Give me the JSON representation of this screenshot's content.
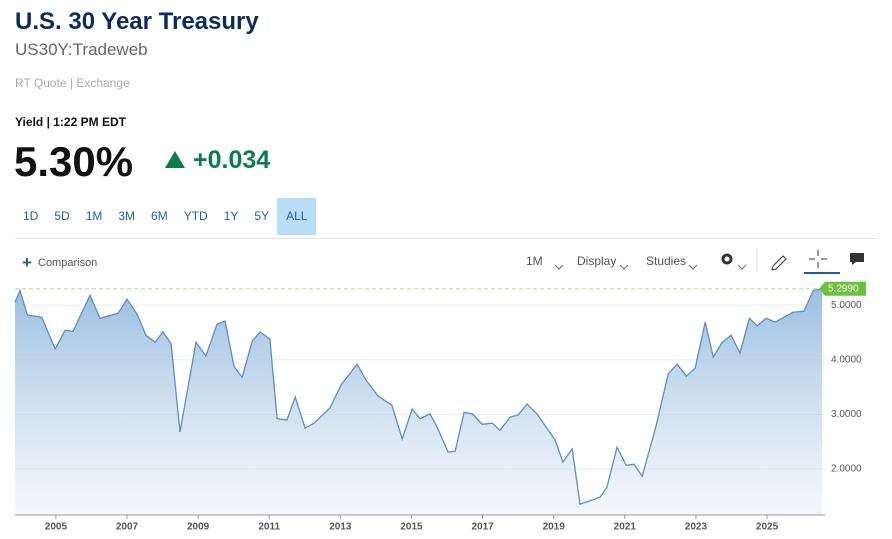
{
  "header": {
    "title": "U.S. 30 Year Treasury",
    "symbol": "US30Y:Tradeweb",
    "quote_type": "RT Quote | Exchange"
  },
  "quote": {
    "label": "Yield | 1:22 PM EDT",
    "price": "5.30%",
    "change": "+0.034"
  },
  "ranges": [
    "1D",
    "5D",
    "1M",
    "3M",
    "6M",
    "YTD",
    "1Y",
    "5Y",
    "ALL"
  ],
  "toolbar": {
    "comparison": "Comparison",
    "interval": "1M",
    "display": "Display",
    "studies": "Studies"
  },
  "chart_data": {
    "type": "area",
    "color": "#5b8fc0",
    "x": [
      2003.85,
      2003.99,
      2004.2,
      2004.6,
      2004.98,
      2005.26,
      2005.48,
      2005.96,
      2006.24,
      2006.75,
      2007.0,
      2007.28,
      2007.53,
      2007.79,
      2008.01,
      2008.24,
      2008.49,
      2008.94,
      2009.22,
      2009.53,
      2009.76,
      2010.01,
      2010.24,
      2010.52,
      2010.74,
      2011.02,
      2011.22,
      2011.5,
      2011.73,
      2012.01,
      2012.26,
      2012.71,
      2013.02,
      2013.47,
      2013.72,
      2014.06,
      2014.45,
      2014.74,
      2015.02,
      2015.24,
      2015.52,
      2015.72,
      2016.03,
      2016.23,
      2016.48,
      2016.71,
      2016.99,
      2017.27,
      2017.49,
      2017.77,
      2018.0,
      2018.25,
      2018.53,
      2018.81,
      2019.04,
      2019.26,
      2019.52,
      2019.74,
      2020.02,
      2020.31,
      2020.5,
      2020.78,
      2021.04,
      2021.26,
      2021.49,
      2021.88,
      2022.22,
      2022.47,
      2022.73,
      2022.98,
      2023.26,
      2023.49,
      2023.74,
      2023.99,
      2024.24,
      2024.5,
      2024.72,
      2024.97,
      2025.23,
      2025.73,
      2026.04,
      2026.3,
      2026.55
    ],
    "values": [
      5.05,
      5.27,
      4.82,
      4.78,
      4.2,
      4.54,
      4.52,
      5.18,
      4.76,
      4.85,
      5.11,
      4.84,
      4.45,
      4.32,
      4.51,
      4.29,
      2.68,
      4.32,
      4.07,
      4.65,
      4.71,
      3.88,
      3.68,
      4.34,
      4.51,
      4.38,
      2.92,
      2.9,
      3.32,
      2.75,
      2.84,
      3.12,
      3.54,
      3.92,
      3.63,
      3.34,
      3.17,
      2.55,
      3.1,
      2.92,
      3.01,
      2.77,
      2.31,
      2.33,
      3.04,
      3.01,
      2.82,
      2.84,
      2.71,
      2.95,
      2.99,
      3.19,
      3.01,
      2.75,
      2.53,
      2.13,
      2.37,
      1.36,
      1.42,
      1.49,
      1.67,
      2.4,
      2.07,
      2.09,
      1.87,
      2.79,
      3.74,
      3.92,
      3.7,
      3.85,
      4.69,
      4.05,
      4.32,
      4.45,
      4.12,
      4.76,
      4.62,
      4.76,
      4.69,
      4.87,
      4.89,
      5.27,
      5.299
    ],
    "last_value": {
      "value": 5.299,
      "label": "5.2990"
    },
    "xlim": [
      2003.85,
      2026.63
    ],
    "ylim": [
      1.16,
      5.46
    ],
    "xticks": [
      2005,
      2007,
      2009,
      2011,
      2013,
      2015,
      2017,
      2019,
      2021,
      2023,
      2025
    ],
    "yticks": [
      {
        "value": 2,
        "label": "2.0000"
      },
      {
        "value": 3,
        "label": "3.0000"
      },
      {
        "value": 4,
        "label": "4.0000"
      },
      {
        "value": 5,
        "label": "5.0000"
      }
    ],
    "grid": true
  }
}
